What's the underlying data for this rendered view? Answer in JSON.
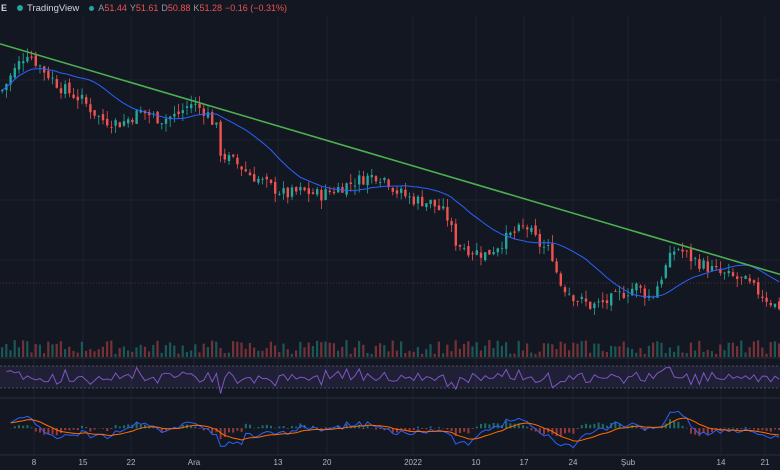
{
  "header": {
    "symbol_fragment": "E",
    "brand": "TradingView",
    "ohlc": [
      {
        "key": "A",
        "value": "51.44"
      },
      {
        "key": "Y",
        "value": "51.61"
      },
      {
        "key": "D",
        "value": "50.88"
      },
      {
        "key": "K",
        "value": "51.28"
      }
    ],
    "change": "−0.16 (−0.31%)"
  },
  "colors": {
    "background": "#131722",
    "up": "#26a69a",
    "down": "#ef5350",
    "trendline": "#4caf50",
    "moving_average": "#2962ff",
    "rsi": "#7e57c2",
    "macd": "#2962ff",
    "signal": "#ff6d00"
  },
  "x_axis": {
    "labels": [
      "8",
      "15",
      "22",
      "Ara",
      "13",
      "20",
      "2022",
      "10",
      "17",
      "24",
      "Şub",
      "14",
      "21"
    ]
  },
  "chart_data": {
    "type": "candlestick",
    "price_path": [
      [
        0,
        52
      ],
      [
        20,
        60
      ],
      [
        26,
        62
      ],
      [
        40,
        58
      ],
      [
        60,
        53
      ],
      [
        80,
        50
      ],
      [
        100,
        45
      ],
      [
        120,
        44
      ],
      [
        140,
        47
      ],
      [
        160,
        45
      ],
      [
        175,
        46
      ],
      [
        190,
        49
      ],
      [
        205,
        47
      ],
      [
        215,
        43
      ],
      [
        220,
        36
      ],
      [
        235,
        34
      ],
      [
        250,
        31
      ],
      [
        270,
        28
      ],
      [
        285,
        26
      ],
      [
        300,
        27
      ],
      [
        320,
        26
      ],
      [
        340,
        28
      ],
      [
        360,
        30
      ],
      [
        375,
        31
      ],
      [
        385,
        30
      ],
      [
        395,
        27
      ],
      [
        410,
        25
      ],
      [
        430,
        24
      ],
      [
        445,
        21
      ],
      [
        455,
        14
      ],
      [
        470,
        12
      ],
      [
        485,
        11
      ],
      [
        500,
        14
      ],
      [
        510,
        16
      ],
      [
        525,
        18
      ],
      [
        540,
        13
      ],
      [
        550,
        12
      ],
      [
        558,
        4
      ],
      [
        575,
        0
      ],
      [
        590,
        -2
      ],
      [
        605,
        -1
      ],
      [
        620,
        1
      ],
      [
        635,
        3
      ],
      [
        650,
        0
      ],
      [
        665,
        8
      ],
      [
        675,
        13
      ],
      [
        690,
        10
      ],
      [
        705,
        8
      ],
      [
        720,
        6
      ],
      [
        735,
        5
      ],
      [
        745,
        4
      ],
      [
        760,
        1
      ],
      [
        775,
        -2
      ]
    ],
    "trendline": [
      [
        0,
        64
      ],
      [
        780,
        6
      ]
    ],
    "moving_average_period": 20,
    "indicators": [
      "Volume",
      "RSI",
      "MACD"
    ]
  }
}
